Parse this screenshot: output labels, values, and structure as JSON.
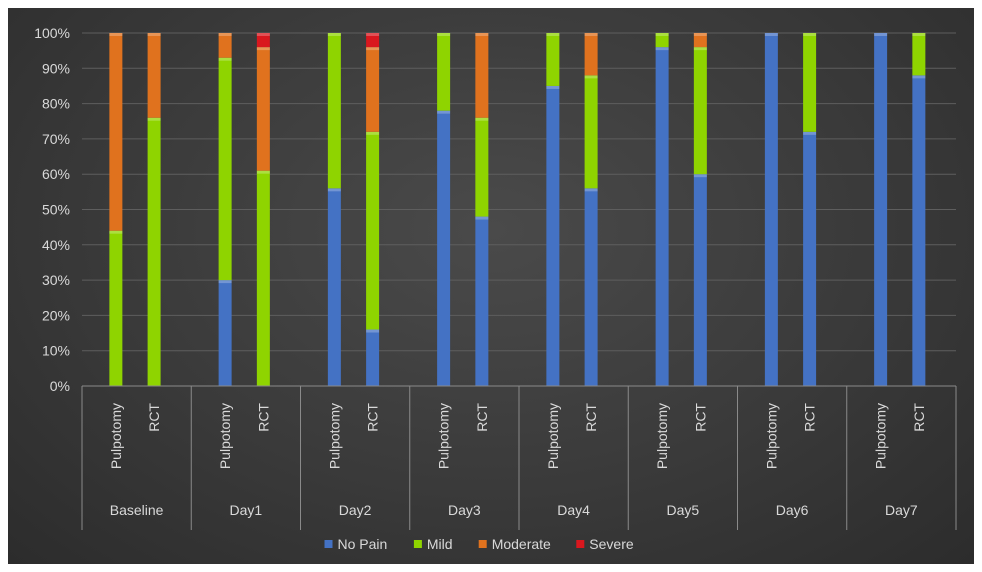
{
  "chart_data": {
    "type": "stacked-bar-100",
    "groups": [
      "Baseline",
      "Day1",
      "Day2",
      "Day3",
      "Day4",
      "Day5",
      "Day6",
      "Day7"
    ],
    "subcategories": [
      "Pulpotomy",
      "RCT"
    ],
    "y_ticks": [
      "0%",
      "10%",
      "20%",
      "30%",
      "40%",
      "50%",
      "60%",
      "70%",
      "80%",
      "90%",
      "100%"
    ],
    "ylim": [
      0,
      100
    ],
    "grid": true,
    "legend_position": "bottom",
    "series": [
      {
        "name": "No Pain",
        "color": "#4472C4",
        "values": [
          [
            0,
            0
          ],
          [
            30,
            0
          ],
          [
            56,
            16
          ],
          [
            78,
            48
          ],
          [
            85,
            56
          ],
          [
            96,
            60
          ],
          [
            100,
            72
          ],
          [
            100,
            88
          ]
        ]
      },
      {
        "name": "Mild",
        "color": "#8FD400",
        "values": [
          [
            44,
            76
          ],
          [
            63,
            61
          ],
          [
            44,
            56
          ],
          [
            22,
            28
          ],
          [
            15,
            32
          ],
          [
            4,
            36
          ],
          [
            0,
            28
          ],
          [
            0,
            12
          ]
        ]
      },
      {
        "name": "Moderate",
        "color": "#E0721E",
        "values": [
          [
            56,
            24
          ],
          [
            7,
            35
          ],
          [
            0,
            24
          ],
          [
            0,
            24
          ],
          [
            0,
            12
          ],
          [
            0,
            4
          ],
          [
            0,
            0
          ],
          [
            0,
            0
          ]
        ]
      },
      {
        "name": "Severe",
        "color": "#D9171E",
        "values": [
          [
            0,
            0
          ],
          [
            0,
            4
          ],
          [
            0,
            4
          ],
          [
            0,
            0
          ],
          [
            0,
            0
          ],
          [
            0,
            0
          ],
          [
            0,
            0
          ],
          [
            0,
            0
          ]
        ]
      }
    ]
  }
}
